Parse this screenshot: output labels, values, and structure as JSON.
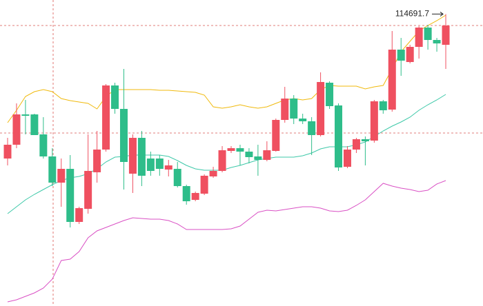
{
  "chart_data": {
    "type": "candlestick",
    "open": [
      110500,
      110900,
      111780,
      111780,
      111200,
      110560,
      109800,
      110200,
      108660,
      109040,
      110100,
      110760,
      112620,
      111940,
      110060,
      111100,
      110500,
      110500,
      110180,
      110200,
      109700,
      109300,
      109480,
      109980,
      110140,
      110720,
      110800,
      110700,
      110560,
      110460,
      110720,
      111620,
      112240,
      111660,
      111580,
      111180,
      112700,
      112040,
      110260,
      110760,
      111060,
      111020,
      112160,
      111920,
      113660,
      113300,
      113740,
      114300,
      113940,
      113800
    ],
    "close": [
      110900,
      111780,
      111740,
      111180,
      110560,
      109800,
      110200,
      108660,
      109060,
      110140,
      110760,
      112620,
      111940,
      110400,
      111100,
      110000,
      110140,
      110200,
      110300,
      109700,
      109260,
      109500,
      110000,
      110140,
      110740,
      110800,
      110700,
      110540,
      110460,
      110740,
      111620,
      112240,
      111660,
      111580,
      111180,
      112720,
      112020,
      110240,
      110760,
      111060,
      111000,
      112160,
      111900,
      113660,
      113340,
      113740,
      114300,
      113940,
      113840,
      114360
    ],
    "high": [
      111100,
      112100,
      112200,
      111800,
      111700,
      110800,
      110500,
      110600,
      109100,
      111200,
      111300,
      112660,
      112700,
      113100,
      111200,
      111300,
      110700,
      110600,
      110460,
      110400,
      109740,
      109540,
      110040,
      110260,
      110860,
      110860,
      110900,
      110800,
      110900,
      111000,
      111660,
      112580,
      112340,
      111800,
      111700,
      113000,
      112740,
      112100,
      110860,
      111100,
      111140,
      112200,
      112200,
      114200,
      114000,
      113800,
      114340,
      114380,
      114000,
      114691.7
    ],
    "low": [
      110300,
      110800,
      111200,
      111180,
      110500,
      109700,
      109100,
      108500,
      108600,
      108900,
      109800,
      110700,
      111800,
      109600,
      109500,
      109700,
      110000,
      110000,
      109980,
      109660,
      109160,
      109260,
      109440,
      109940,
      110100,
      110660,
      110300,
      110360,
      110000,
      110420,
      110700,
      111540,
      111500,
      111500,
      110600,
      111140,
      111940,
      110140,
      110220,
      110660,
      110300,
      110960,
      111800,
      111860,
      112900,
      113260,
      113400,
      113660,
      113600,
      113100
    ],
    "up_color": "#ef5060",
    "down_color": "#2ebd8a",
    "lines": [
      {
        "color": "#f0b90b",
        "values": [
          111540,
          111900,
          112300,
          112440,
          112500,
          112440,
          112240,
          112180,
          112140,
          112100,
          111940,
          112300,
          112500,
          112500,
          112500,
          112500,
          112500,
          112480,
          112480,
          112460,
          112440,
          112420,
          112340,
          112000,
          111960,
          112000,
          112060,
          112000,
          111960,
          112000,
          112100,
          112200,
          112240,
          112200,
          112240,
          112500,
          112620,
          112600,
          112600,
          112600,
          112520,
          112580,
          112620,
          113100,
          113600,
          113900,
          114200,
          114360,
          114500,
          114660
        ]
      },
      {
        "color": "#3cc8a8",
        "values": [
          108900,
          109100,
          109300,
          109460,
          109600,
          109740,
          109860,
          109940,
          109980,
          110060,
          110200,
          110400,
          110540,
          110560,
          110600,
          110600,
          110600,
          110600,
          110560,
          110440,
          110300,
          110200,
          110160,
          110160,
          110160,
          110240,
          110300,
          110380,
          110460,
          110500,
          110540,
          110540,
          110540,
          110580,
          110660,
          110780,
          110840,
          110840,
          110840,
          110900,
          110980,
          111140,
          111300,
          111440,
          111560,
          111700,
          111900,
          112060,
          112200,
          112360
        ]
      },
      {
        "color": "#d94fc4",
        "values": [
          106340,
          106400,
          106500,
          106600,
          106740,
          107000,
          107540,
          107580,
          107800,
          108200,
          108400,
          108500,
          108600,
          108700,
          108780,
          108760,
          108740,
          108740,
          108700,
          108600,
          108440,
          108440,
          108440,
          108440,
          108440,
          108460,
          108540,
          108740,
          108940,
          109000,
          108980,
          109020,
          109060,
          109100,
          109100,
          109060,
          108980,
          108960,
          109000,
          109140,
          109300,
          109540,
          109780,
          109700,
          109640,
          109600,
          109540,
          109580,
          109760,
          109860
        ]
      }
    ],
    "ylim": [
      106220,
      115100
    ]
  }
}
